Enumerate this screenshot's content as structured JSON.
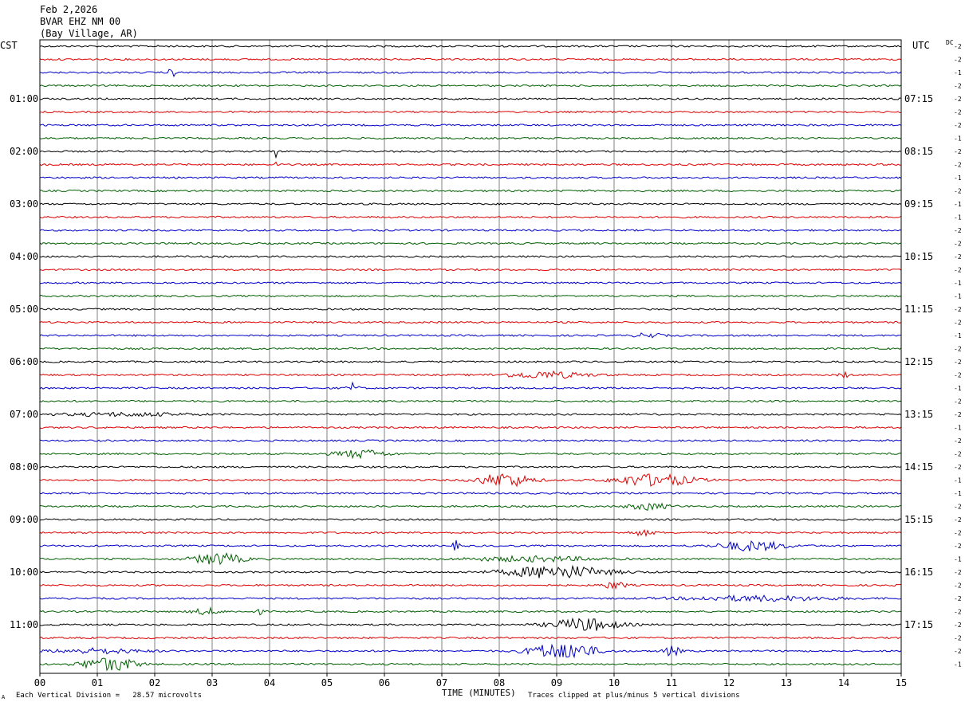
{
  "header": {
    "date": "Feb 2,2026",
    "station": "BVAR EHZ NM 00",
    "location": "(Bay Village, AR)"
  },
  "axis_labels": {
    "left_timezone": "CST",
    "right_timezone": "UTC",
    "dc_label": "DC",
    "x_axis": "TIME (MINUTES)"
  },
  "footer": {
    "scale_note": "Each Vertical Division =   28.57 microvolts",
    "clip_note": "Traces clipped at plus/minus 5 vertical divisions",
    "mark": "A"
  },
  "colors": {
    "trace_cycle": [
      "#000000",
      "#e00000",
      "#0000cc",
      "#006000"
    ],
    "grid": "#808080"
  },
  "chart_data": {
    "type": "helicorder",
    "x_ticks": [
      "00",
      "01",
      "02",
      "03",
      "04",
      "05",
      "06",
      "07",
      "08",
      "09",
      "10",
      "11",
      "12",
      "13",
      "14",
      "15"
    ],
    "x_range_minutes": [
      0,
      15
    ],
    "trace_count": 48,
    "traces_per_hour": 4,
    "left_hour_labels": [
      "01:00",
      "02:00",
      "03:00",
      "04:00",
      "05:00",
      "06:00",
      "07:00",
      "08:00",
      "09:00",
      "10:00",
      "11:00"
    ],
    "right_hour_labels": [
      "07:15",
      "08:15",
      "09:15",
      "10:15",
      "11:15",
      "12:15",
      "13:15",
      "14:15",
      "15:15",
      "16:15",
      "17:15"
    ],
    "dc_offsets": [
      "-2",
      "-2",
      "-1",
      "-2",
      "-2",
      "-2",
      "-2",
      "-1",
      "-2",
      "-2",
      "-1",
      "-2",
      "-1",
      "-1",
      "-2",
      "-2",
      "-2",
      "-2",
      "-1",
      "-1",
      "-2",
      "-2",
      "-1",
      "-2",
      "-2",
      "-2",
      "-1",
      "-2",
      "-2",
      "-1",
      "-2",
      "-2",
      "-2",
      "-1",
      "-1",
      "-2",
      "-2",
      "-2",
      "-2",
      "-1",
      "-2",
      "-2",
      "-2",
      "-2",
      "-2",
      "-2",
      "-2",
      "-1"
    ],
    "events": [
      {
        "trace": 2,
        "minute": 2.3,
        "width": 0.08,
        "amp": 6
      },
      {
        "trace": 8,
        "minute": 4.12,
        "width": 0.02,
        "amp": 14
      },
      {
        "trace": 9,
        "minute": 4.12,
        "width": 0.02,
        "amp": 14
      },
      {
        "trace": 22,
        "minute": 10.6,
        "width": 0.3,
        "amp": 3
      },
      {
        "trace": 25,
        "minute": 8.8,
        "width": 1.0,
        "amp": 4
      },
      {
        "trace": 25,
        "minute": 14.0,
        "width": 0.1,
        "amp": 4
      },
      {
        "trace": 26,
        "minute": 5.45,
        "width": 0.12,
        "amp": 6
      },
      {
        "trace": 28,
        "minute": 1.5,
        "width": 1.5,
        "amp": 2
      },
      {
        "trace": 31,
        "minute": 5.6,
        "width": 0.6,
        "amp": 5
      },
      {
        "trace": 33,
        "minute": 8.1,
        "width": 0.6,
        "amp": 9
      },
      {
        "trace": 33,
        "minute": 10.7,
        "width": 0.9,
        "amp": 8
      },
      {
        "trace": 35,
        "minute": 10.6,
        "width": 0.5,
        "amp": 4
      },
      {
        "trace": 37,
        "minute": 10.5,
        "width": 0.3,
        "amp": 3
      },
      {
        "trace": 38,
        "minute": 12.4,
        "width": 0.8,
        "amp": 6
      },
      {
        "trace": 38,
        "minute": 7.25,
        "width": 0.08,
        "amp": 6
      },
      {
        "trace": 39,
        "minute": 3.1,
        "width": 0.6,
        "amp": 7
      },
      {
        "trace": 39,
        "minute": 8.6,
        "width": 1.5,
        "amp": 3
      },
      {
        "trace": 40,
        "minute": 9.0,
        "width": 1.2,
        "amp": 8
      },
      {
        "trace": 41,
        "minute": 10.0,
        "width": 0.3,
        "amp": 4
      },
      {
        "trace": 42,
        "minute": 12.5,
        "width": 1.8,
        "amp": 3
      },
      {
        "trace": 43,
        "minute": 2.9,
        "width": 0.3,
        "amp": 4
      },
      {
        "trace": 43,
        "minute": 3.8,
        "width": 0.1,
        "amp": 4
      },
      {
        "trace": 44,
        "minute": 9.5,
        "width": 0.8,
        "amp": 8
      },
      {
        "trace": 46,
        "minute": 9.1,
        "width": 0.7,
        "amp": 14
      },
      {
        "trace": 46,
        "minute": 11.0,
        "width": 0.2,
        "amp": 6
      },
      {
        "trace": 46,
        "minute": 1.0,
        "width": 1.0,
        "amp": 3
      },
      {
        "trace": 47,
        "minute": 1.2,
        "width": 0.6,
        "amp": 10
      }
    ]
  }
}
